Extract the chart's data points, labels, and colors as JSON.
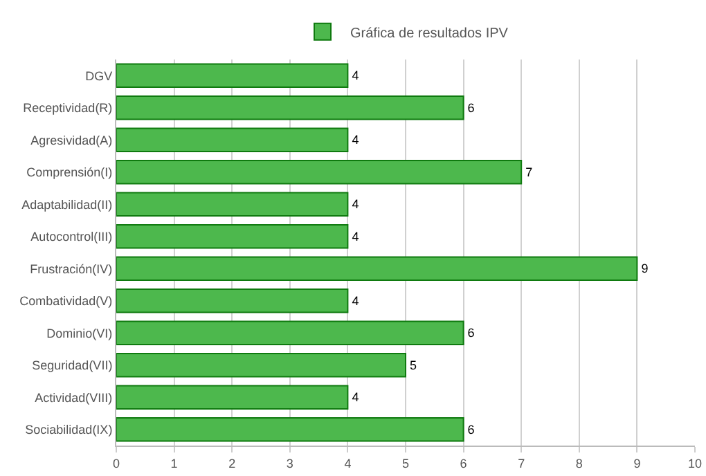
{
  "chart_data": {
    "type": "bar",
    "orientation": "horizontal",
    "categories": [
      "DGV",
      "Receptividad(R)",
      "Agresividad(A)",
      "Comprensión(I)",
      "Adaptabilidad(II)",
      "Autocontrol(III)",
      "Frustración(IV)",
      "Combatividad(V)",
      "Dominio(VI)",
      "Seguridad(VII)",
      "Actividad(VIII)",
      "Sociabilidad(IX)"
    ],
    "series": [
      {
        "name": "Gráfica de resultados IPV",
        "color": "#4db84d",
        "values": [
          4,
          6,
          4,
          7,
          4,
          4,
          9,
          4,
          6,
          5,
          4,
          6
        ]
      }
    ],
    "xlim": [
      0,
      10
    ],
    "xticks": [
      0,
      1,
      2,
      3,
      4,
      5,
      6,
      7,
      8,
      9,
      10
    ],
    "grid": "x",
    "legend": "top",
    "data_labels": true
  }
}
